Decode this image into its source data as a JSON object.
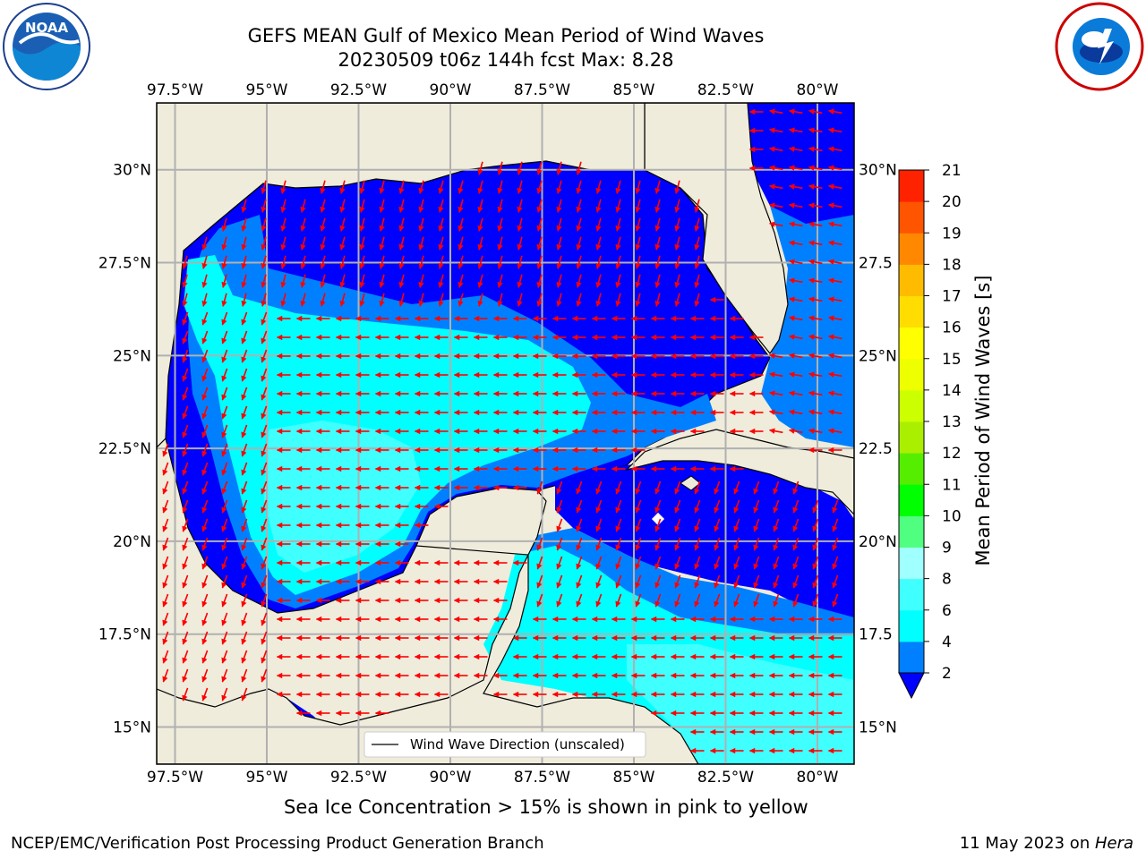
{
  "title": {
    "line1": "GEFS MEAN Gulf of Mexico Mean Period of Wind Waves",
    "line2": "20230509 t06z 144h fcst   Max: 8.28"
  },
  "logos": {
    "left": "noaa-logo",
    "left_text": "NOAA",
    "right": "nws-logo"
  },
  "map": {
    "lon_labels": [
      "97.5°W",
      "95°W",
      "92.5°W",
      "90°W",
      "87.5°W",
      "85°W",
      "82.5°W",
      "80°W"
    ],
    "lat_labels": [
      "30°N",
      "27.5°N",
      "25°N",
      "22.5°N",
      "20°N",
      "17.5°N",
      "15°N"
    ],
    "lat_labels_right": [
      "30°N",
      "27.5",
      "25°N",
      "22.5",
      "20°N",
      "17.5",
      "15°N"
    ],
    "lon_range": [
      -98.0,
      -79.0
    ],
    "lat_range": [
      14.0,
      31.8
    ],
    "land_color": "#efecdc",
    "arrow_color": "#ff0000",
    "legend_label": "Wind Wave Direction (unscaled)"
  },
  "colorbar": {
    "label": "Mean Period of Wind Waves [s]",
    "ticks": [
      "2",
      "4",
      "6",
      "8",
      "9",
      "10",
      "11",
      "12",
      "13",
      "14",
      "15",
      "16",
      "17",
      "18",
      "19",
      "20",
      "21"
    ],
    "colors": [
      "#0080ff",
      "#00ffff",
      "#40ffff",
      "#a0ffff",
      "#50ff80",
      "#00ff00",
      "#55ee00",
      "#aaee00",
      "#ccff00",
      "#eeff00",
      "#ffff00",
      "#ffdd00",
      "#ffbb00",
      "#ff8800",
      "#ff5500",
      "#ff2200"
    ],
    "extend_color": "#0000ff"
  },
  "note": "Sea Ice Concentration > 15% is shown in pink to yellow",
  "footer": {
    "left": "NCEP/EMC/Verification Post Processing Product Generation Branch",
    "right_date": "11 May 2023 on ",
    "right_machine": "Hera"
  }
}
